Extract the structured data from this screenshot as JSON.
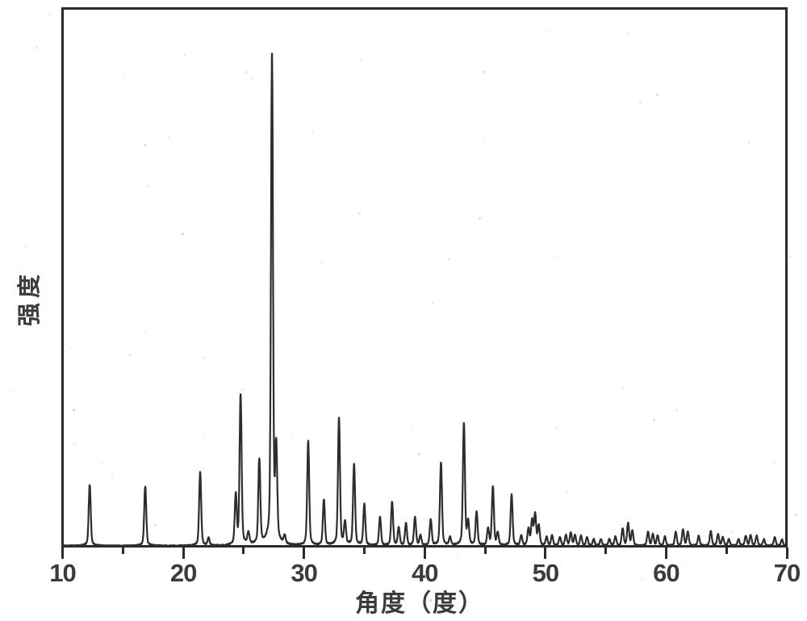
{
  "chart_data": {
    "type": "line",
    "chart_kind": "powder XRD diffraction pattern (scanned figure)",
    "title": "",
    "xlabel": "角度（度）",
    "ylabel": "强度",
    "xlim": [
      10,
      70
    ],
    "x_major_ticks": [
      10,
      20,
      30,
      40,
      50,
      60,
      70
    ],
    "x_minor_ticks": [
      15,
      25,
      35,
      45,
      55,
      65
    ],
    "y_ticks": [],
    "ylim_note": "intensity in arbitrary units; no y tick marks; peak heights normalized to strongest peak = 1.0",
    "legend": "none",
    "grid": "off",
    "series": [
      {
        "name": "XRD pattern",
        "peaks_format": [
          "two_theta_deg",
          "relative_intensity"
        ],
        "peaks": [
          [
            12.25,
            0.125
          ],
          [
            16.85,
            0.122
          ],
          [
            21.4,
            0.152
          ],
          [
            22.1,
            0.015
          ],
          [
            24.35,
            0.1
          ],
          [
            24.75,
            0.307
          ],
          [
            25.4,
            0.023
          ],
          [
            26.3,
            0.173
          ],
          [
            27.35,
            1.0
          ],
          [
            27.7,
            0.186
          ],
          [
            28.4,
            0.016
          ],
          [
            30.35,
            0.214
          ],
          [
            31.65,
            0.094
          ],
          [
            32.9,
            0.26
          ],
          [
            33.4,
            0.046
          ],
          [
            34.15,
            0.165
          ],
          [
            35.0,
            0.084
          ],
          [
            36.3,
            0.058
          ],
          [
            37.3,
            0.089
          ],
          [
            37.85,
            0.036
          ],
          [
            38.45,
            0.045
          ],
          [
            39.2,
            0.058
          ],
          [
            39.65,
            0.02
          ],
          [
            40.5,
            0.053
          ],
          [
            41.35,
            0.168
          ],
          [
            42.1,
            0.016
          ],
          [
            43.25,
            0.249
          ],
          [
            43.6,
            0.045
          ],
          [
            44.3,
            0.068
          ],
          [
            45.25,
            0.033
          ],
          [
            45.65,
            0.119
          ],
          [
            46.05,
            0.025
          ],
          [
            47.2,
            0.104
          ],
          [
            48.0,
            0.02
          ],
          [
            48.6,
            0.033
          ],
          [
            48.9,
            0.05
          ],
          [
            49.15,
            0.063
          ],
          [
            49.45,
            0.04
          ],
          [
            50.1,
            0.017
          ],
          [
            50.55,
            0.02
          ],
          [
            51.2,
            0.017
          ],
          [
            51.7,
            0.021
          ],
          [
            52.1,
            0.026
          ],
          [
            52.45,
            0.021
          ],
          [
            52.95,
            0.02
          ],
          [
            53.45,
            0.017
          ],
          [
            54.0,
            0.013
          ],
          [
            54.6,
            0.013
          ],
          [
            55.3,
            0.013
          ],
          [
            55.8,
            0.018
          ],
          [
            56.4,
            0.035
          ],
          [
            56.85,
            0.045
          ],
          [
            57.2,
            0.03
          ],
          [
            58.5,
            0.028
          ],
          [
            58.9,
            0.023
          ],
          [
            59.3,
            0.02
          ],
          [
            59.9,
            0.018
          ],
          [
            60.8,
            0.028
          ],
          [
            61.4,
            0.033
          ],
          [
            61.8,
            0.028
          ],
          [
            62.7,
            0.02
          ],
          [
            63.7,
            0.03
          ],
          [
            64.3,
            0.023
          ],
          [
            64.7,
            0.017
          ],
          [
            65.2,
            0.013
          ],
          [
            66.0,
            0.013
          ],
          [
            66.6,
            0.02
          ],
          [
            67.0,
            0.021
          ],
          [
            67.5,
            0.02
          ],
          [
            68.1,
            0.013
          ],
          [
            69.0,
            0.017
          ],
          [
            69.6,
            0.013
          ]
        ]
      }
    ],
    "colors": {
      "curve": "#2d2d2d",
      "axis": "#2b2b2b",
      "text": "#3b3b3b",
      "background": "#ffffff"
    }
  }
}
